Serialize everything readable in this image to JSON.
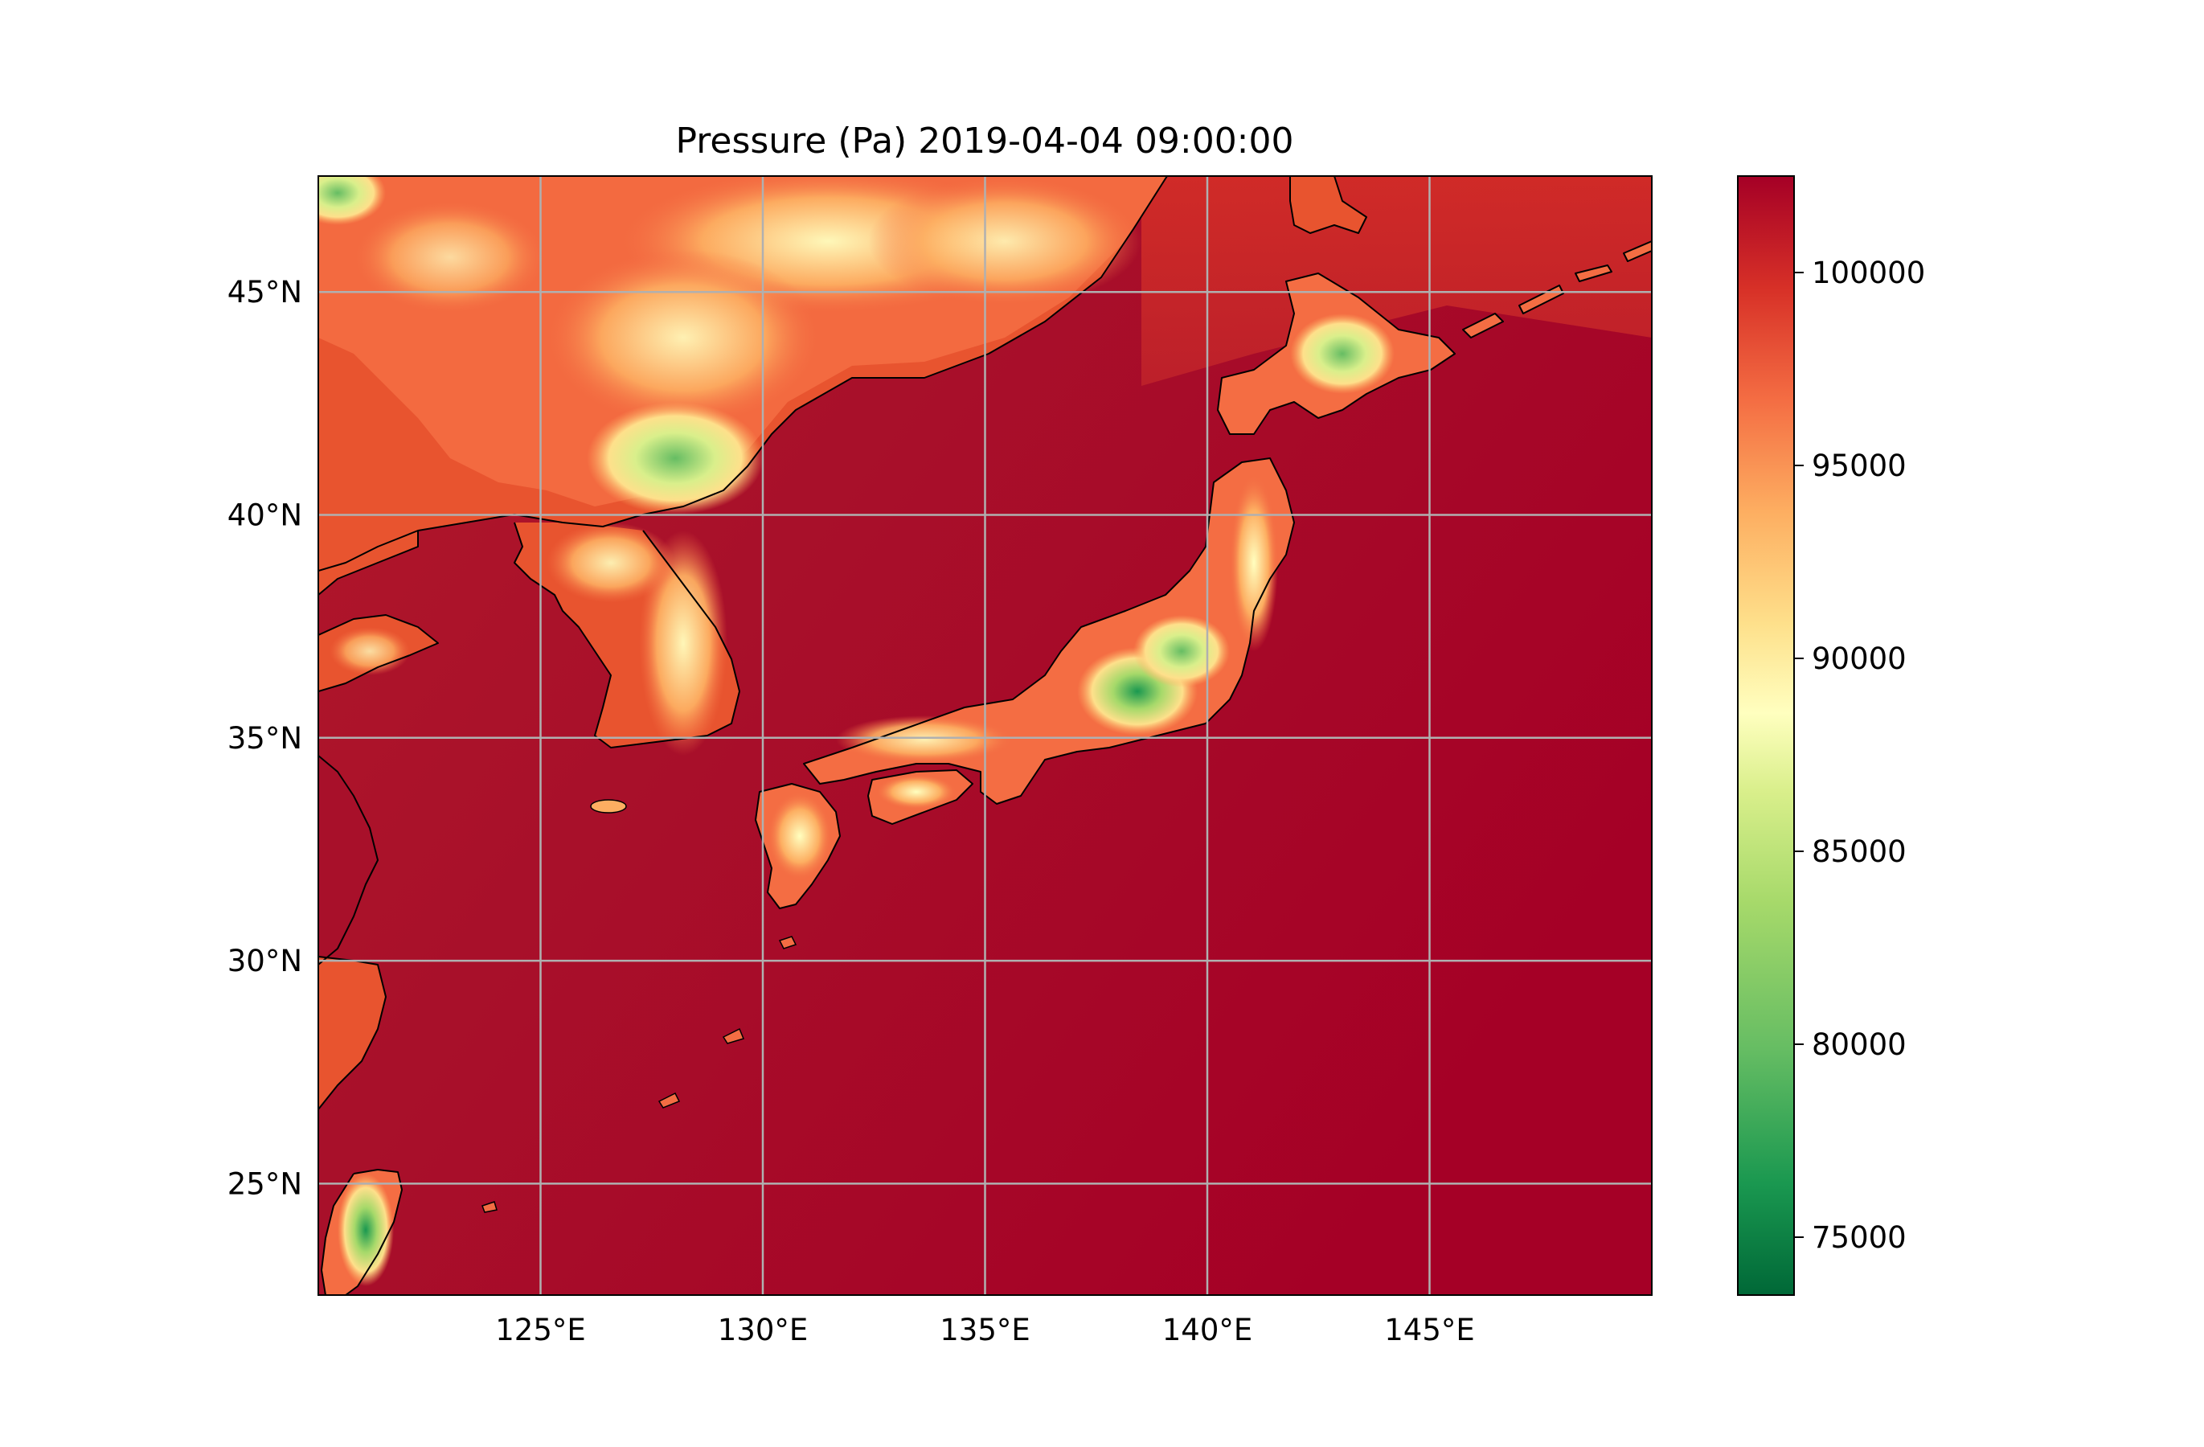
{
  "title": "Pressure (Pa) 2019-04-04 09:00:00",
  "map": {
    "lon_range": [
      120,
      150
    ],
    "lat_range": [
      22.5,
      47.6
    ],
    "lon_ticks": [
      {
        "value": 125,
        "label": "125°E"
      },
      {
        "value": 130,
        "label": "130°E"
      },
      {
        "value": 135,
        "label": "135°E"
      },
      {
        "value": 140,
        "label": "140°E"
      },
      {
        "value": 145,
        "label": "145°E"
      }
    ],
    "lat_ticks": [
      {
        "value": 45,
        "label": "45°N"
      },
      {
        "value": 40,
        "label": "40°N"
      },
      {
        "value": 35,
        "label": "35°N"
      },
      {
        "value": 30,
        "label": "30°N"
      },
      {
        "value": 25,
        "label": "25°N"
      }
    ],
    "gridlines": true,
    "coastlines": true
  },
  "colorbar": {
    "cmap": "RdYlGn",
    "range": [
      73500,
      102500
    ],
    "ticks": [
      {
        "value": 100000,
        "label": "100000"
      },
      {
        "value": 95000,
        "label": "95000"
      },
      {
        "value": 90000,
        "label": "90000"
      },
      {
        "value": 85000,
        "label": "85000"
      },
      {
        "value": 80000,
        "label": "80000"
      },
      {
        "value": 75000,
        "label": "75000"
      }
    ],
    "colors": {
      "low": "#006837",
      "mid_low": "#66bd63",
      "mid": "#ffffbf",
      "mid_high": "#f46d43",
      "high": "#a50026"
    }
  }
}
